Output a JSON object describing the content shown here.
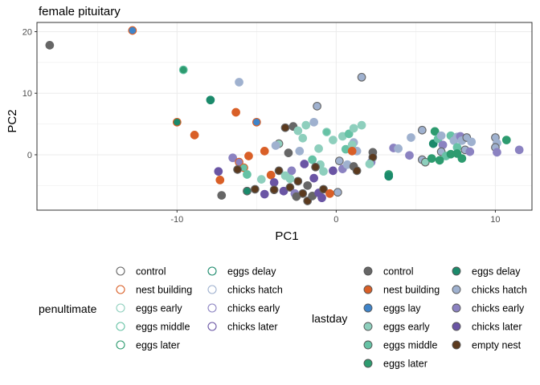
{
  "chart_data": {
    "type": "scatter",
    "title": "female pituitary",
    "xlabel": "PC1",
    "ylabel": "PC2",
    "xlim": [
      -18.8,
      12.3
    ],
    "ylim": [
      -9.0,
      21.5
    ],
    "xticks": [
      -10,
      0,
      10
    ],
    "xtick_labels": [
      "-10",
      "0",
      "10"
    ],
    "yticks": [
      -10,
      0,
      10,
      20
    ],
    "ytick_labels": [
      "",
      "0",
      "10",
      "20"
    ],
    "grid": true,
    "border_color": "#333333",
    "grid_color": "#ebebeb",
    "legends": [
      {
        "title": "penultimate",
        "style": "outline",
        "columns": [
          [
            "control",
            "nest building",
            "eggs early",
            "eggs middle",
            "eggs later"
          ],
          [
            "eggs delay",
            "chicks hatch",
            "chicks early",
            "chicks later"
          ]
        ]
      },
      {
        "title": "lastday",
        "style": "filled",
        "columns": [
          [
            "control",
            "nest building",
            "eggs lay",
            "eggs early",
            "eggs middle",
            "eggs later"
          ],
          [
            "eggs delay",
            "chicks hatch",
            "chicks early",
            "chicks later",
            "empty nest"
          ]
        ]
      }
    ],
    "colors": {
      "control": "#666666",
      "nest building": "#d95f27",
      "eggs lay": "#3f84c9",
      "eggs early": "#8ecfbd",
      "eggs middle": "#66c2a5",
      "eggs later": "#2d9b6f",
      "eggs delay": "#1b8a6b",
      "chicks hatch": "#9fb1cf",
      "chicks early": "#8b82c1",
      "chicks later": "#6a55a4",
      "empty nest": "#5b3a1e"
    },
    "points": [
      {
        "x": -18.0,
        "y": 17.8,
        "fill": "control",
        "stroke": "control"
      },
      {
        "x": -12.8,
        "y": 20.2,
        "fill": "eggs lay",
        "stroke": "nest building"
      },
      {
        "x": -9.6,
        "y": 13.8,
        "fill": "eggs later",
        "stroke": "eggs middle"
      },
      {
        "x": -7.9,
        "y": 8.9,
        "fill": "eggs delay",
        "stroke": "eggs delay"
      },
      {
        "x": -6.1,
        "y": 11.8,
        "fill": "chicks hatch",
        "stroke": "chicks hatch"
      },
      {
        "x": -6.3,
        "y": 6.9,
        "fill": "nest building",
        "stroke": "nest building"
      },
      {
        "x": -10.0,
        "y": 5.3,
        "fill": "eggs delay",
        "stroke": "nest building"
      },
      {
        "x": -5.0,
        "y": 5.3,
        "fill": "eggs lay",
        "stroke": "nest building"
      },
      {
        "x": -8.9,
        "y": 3.2,
        "fill": "nest building",
        "stroke": "nest building"
      },
      {
        "x": 1.6,
        "y": 12.6,
        "fill": "chicks hatch",
        "stroke": "control"
      },
      {
        "x": -1.2,
        "y": 7.9,
        "fill": "chicks hatch",
        "stroke": "control"
      },
      {
        "x": -3.6,
        "y": 1.8,
        "fill": "eggs early",
        "stroke": "control"
      },
      {
        "x": -3.2,
        "y": 4.4,
        "fill": "empty nest",
        "stroke": "control"
      },
      {
        "x": -2.7,
        "y": 4.6,
        "fill": "control",
        "stroke": "control"
      },
      {
        "x": -2.4,
        "y": 3.9,
        "fill": "eggs early",
        "stroke": "eggs early"
      },
      {
        "x": -1.9,
        "y": 4.8,
        "fill": "eggs early",
        "stroke": "eggs early"
      },
      {
        "x": -1.4,
        "y": 5.3,
        "fill": "chicks hatch",
        "stroke": "chicks hatch"
      },
      {
        "x": -0.6,
        "y": 3.7,
        "fill": "eggs middle",
        "stroke": "eggs early"
      },
      {
        "x": -0.2,
        "y": 2.4,
        "fill": "eggs early",
        "stroke": "eggs early"
      },
      {
        "x": 0.4,
        "y": 3.0,
        "fill": "eggs early",
        "stroke": "eggs early"
      },
      {
        "x": 0.8,
        "y": 3.4,
        "fill": "eggs middle",
        "stroke": "eggs middle"
      },
      {
        "x": 1.1,
        "y": 4.3,
        "fill": "eggs early",
        "stroke": "eggs early"
      },
      {
        "x": 1.6,
        "y": 4.8,
        "fill": "eggs early",
        "stroke": "eggs early"
      },
      {
        "x": 1.1,
        "y": 2.0,
        "fill": "chicks hatch",
        "stroke": "chicks hatch"
      },
      {
        "x": -2.1,
        "y": 2.7,
        "fill": "eggs early",
        "stroke": "eggs early"
      },
      {
        "x": -3.8,
        "y": 1.5,
        "fill": "chicks hatch",
        "stroke": "chicks hatch"
      },
      {
        "x": -4.5,
        "y": 0.6,
        "fill": "nest building",
        "stroke": "nest building"
      },
      {
        "x": -3.0,
        "y": 0.3,
        "fill": "control",
        "stroke": "control"
      },
      {
        "x": -2.3,
        "y": 0.6,
        "fill": "chicks hatch",
        "stroke": "chicks hatch"
      },
      {
        "x": -1.1,
        "y": 1.0,
        "fill": "eggs early",
        "stroke": "eggs early"
      },
      {
        "x": -1.5,
        "y": -0.8,
        "fill": "eggs middle",
        "stroke": "eggs middle"
      },
      {
        "x": -1.0,
        "y": -1.6,
        "fill": "eggs early",
        "stroke": "eggs early"
      },
      {
        "x": -0.8,
        "y": -2.7,
        "fill": "eggs early",
        "stroke": "eggs early"
      },
      {
        "x": 0.6,
        "y": 0.9,
        "fill": "eggs middle",
        "stroke": "eggs middle"
      },
      {
        "x": 1.0,
        "y": 1.6,
        "fill": "eggs early",
        "stroke": "eggs early"
      },
      {
        "x": 1.3,
        "y": 0.6,
        "fill": "chicks hatch",
        "stroke": "chicks hatch"
      },
      {
        "x": 0.2,
        "y": -1.0,
        "fill": "chicks hatch",
        "stroke": "control"
      },
      {
        "x": 0.4,
        "y": -2.3,
        "fill": "chicks early",
        "stroke": "chicks early"
      },
      {
        "x": 0.7,
        "y": -1.6,
        "fill": "chicks hatch",
        "stroke": "chicks hatch"
      },
      {
        "x": 1.1,
        "y": -1.9,
        "fill": "control",
        "stroke": "control"
      },
      {
        "x": 1.3,
        "y": -2.6,
        "fill": "empty nest",
        "stroke": "control"
      },
      {
        "x": 2.2,
        "y": -1.2,
        "fill": "chicks early",
        "stroke": "chicks early"
      },
      {
        "x": 2.3,
        "y": 0.4,
        "fill": "control",
        "stroke": "control"
      },
      {
        "x": 2.3,
        "y": -0.4,
        "fill": "empty nest",
        "stroke": "control"
      },
      {
        "x": 1.0,
        "y": 0.6,
        "fill": "nest building",
        "stroke": "nest building"
      },
      {
        "x": -0.2,
        "y": -2.6,
        "fill": "chicks later",
        "stroke": "chicks later"
      },
      {
        "x": -1.3,
        "y": -2.0,
        "fill": "empty nest",
        "stroke": "control"
      },
      {
        "x": -2.8,
        "y": -2.6,
        "fill": "chicks early",
        "stroke": "chicks early"
      },
      {
        "x": 0.1,
        "y": -6.1,
        "fill": "chicks hatch",
        "stroke": "control"
      },
      {
        "x": 2.1,
        "y": -1.5,
        "fill": "eggs early",
        "stroke": "eggs early"
      },
      {
        "x": 3.3,
        "y": -3.2,
        "fill": "eggs later",
        "stroke": "eggs later"
      },
      {
        "x": 3.3,
        "y": -3.5,
        "fill": "eggs delay",
        "stroke": "eggs delay"
      },
      {
        "x": 3.6,
        "y": 1.1,
        "fill": "chicks early",
        "stroke": "chicks early"
      },
      {
        "x": 3.9,
        "y": 1.0,
        "fill": "chicks hatch",
        "stroke": "chicks hatch"
      },
      {
        "x": 4.7,
        "y": 2.8,
        "fill": "chicks hatch",
        "stroke": "chicks hatch"
      },
      {
        "x": 4.6,
        "y": -0.1,
        "fill": "chicks early",
        "stroke": "chicks early"
      },
      {
        "x": 5.4,
        "y": 4.0,
        "fill": "chicks hatch",
        "stroke": "control"
      },
      {
        "x": 5.4,
        "y": -0.8,
        "fill": "chicks hatch",
        "stroke": "control"
      },
      {
        "x": 5.6,
        "y": -1.2,
        "fill": "eggs early",
        "stroke": "control"
      },
      {
        "x": 6.0,
        "y": -0.6,
        "fill": "eggs later",
        "stroke": "eggs later"
      },
      {
        "x": 6.1,
        "y": 1.8,
        "fill": "eggs delay",
        "stroke": "eggs delay"
      },
      {
        "x": 6.2,
        "y": 3.8,
        "fill": "eggs later",
        "stroke": "eggs later"
      },
      {
        "x": 6.4,
        "y": 2.6,
        "fill": "eggs middle",
        "stroke": "eggs middle"
      },
      {
        "x": 6.6,
        "y": 3.1,
        "fill": "chicks hatch",
        "stroke": "chicks hatch"
      },
      {
        "x": 6.7,
        "y": 1.6,
        "fill": "chicks early",
        "stroke": "chicks early"
      },
      {
        "x": 6.6,
        "y": 0.5,
        "fill": "chicks hatch",
        "stroke": "control"
      },
      {
        "x": 6.9,
        "y": -0.2,
        "fill": "eggs middle",
        "stroke": "eggs middle"
      },
      {
        "x": 6.5,
        "y": -0.9,
        "fill": "eggs later",
        "stroke": "eggs later"
      },
      {
        "x": 7.2,
        "y": 3.1,
        "fill": "eggs middle",
        "stroke": "eggs middle"
      },
      {
        "x": 7.4,
        "y": 2.3,
        "fill": "chicks hatch",
        "stroke": "chicks hatch"
      },
      {
        "x": 7.6,
        "y": 2.9,
        "fill": "chicks hatch",
        "stroke": "chicks hatch"
      },
      {
        "x": 7.8,
        "y": 3.0,
        "fill": "chicks early",
        "stroke": "chicks early"
      },
      {
        "x": 7.9,
        "y": 2.3,
        "fill": "chicks hatch",
        "stroke": "chicks hatch"
      },
      {
        "x": 8.2,
        "y": 2.8,
        "fill": "chicks hatch",
        "stroke": "control"
      },
      {
        "x": 8.5,
        "y": 2.1,
        "fill": "chicks hatch",
        "stroke": "chicks hatch"
      },
      {
        "x": 7.6,
        "y": 1.2,
        "fill": "eggs middle",
        "stroke": "eggs middle"
      },
      {
        "x": 7.2,
        "y": 0.1,
        "fill": "eggs later",
        "stroke": "eggs later"
      },
      {
        "x": 7.6,
        "y": 0.2,
        "fill": "eggs later",
        "stroke": "eggs later"
      },
      {
        "x": 7.9,
        "y": -0.6,
        "fill": "eggs later",
        "stroke": "eggs later"
      },
      {
        "x": 8.1,
        "y": 0.8,
        "fill": "chicks hatch",
        "stroke": "control"
      },
      {
        "x": 8.4,
        "y": 0.5,
        "fill": "chicks early",
        "stroke": "chicks early"
      },
      {
        "x": 10.0,
        "y": 2.8,
        "fill": "chicks hatch",
        "stroke": "control"
      },
      {
        "x": 10.1,
        "y": 1.9,
        "fill": "chicks hatch",
        "stroke": "chicks hatch"
      },
      {
        "x": 10.0,
        "y": 1.2,
        "fill": "chicks hatch",
        "stroke": "control"
      },
      {
        "x": 10.1,
        "y": 0.4,
        "fill": "chicks early",
        "stroke": "chicks early"
      },
      {
        "x": 10.7,
        "y": 2.4,
        "fill": "eggs later",
        "stroke": "eggs later"
      },
      {
        "x": 11.5,
        "y": 0.8,
        "fill": "chicks early",
        "stroke": "chicks early"
      },
      {
        "x": -6.5,
        "y": -0.5,
        "fill": "chicks early",
        "stroke": "chicks early"
      },
      {
        "x": -6.1,
        "y": -1.2,
        "fill": "chicks early",
        "stroke": "nest building"
      },
      {
        "x": -5.5,
        "y": -0.2,
        "fill": "nest building",
        "stroke": "nest building"
      },
      {
        "x": -5.8,
        "y": -2.1,
        "fill": "eggs middle",
        "stroke": "nest building"
      },
      {
        "x": -5.6,
        "y": -3.2,
        "fill": "eggs middle",
        "stroke": "eggs middle"
      },
      {
        "x": -6.2,
        "y": -2.4,
        "fill": "empty nest",
        "stroke": "control"
      },
      {
        "x": -7.4,
        "y": -2.7,
        "fill": "chicks later",
        "stroke": "chicks later"
      },
      {
        "x": -7.3,
        "y": -4.1,
        "fill": "nest building",
        "stroke": "nest building"
      },
      {
        "x": -7.2,
        "y": -6.6,
        "fill": "control",
        "stroke": "control"
      },
      {
        "x": -5.6,
        "y": -5.9,
        "fill": "eggs delay",
        "stroke": "control"
      },
      {
        "x": -4.7,
        "y": -4.0,
        "fill": "eggs early",
        "stroke": "eggs early"
      },
      {
        "x": -5.1,
        "y": -5.6,
        "fill": "empty nest",
        "stroke": "control"
      },
      {
        "x": -4.5,
        "y": -6.4,
        "fill": "chicks later",
        "stroke": "chicks later"
      },
      {
        "x": -4.1,
        "y": -3.3,
        "fill": "nest building",
        "stroke": "nest building"
      },
      {
        "x": -3.9,
        "y": -4.5,
        "fill": "chicks later",
        "stroke": "chicks later"
      },
      {
        "x": -3.6,
        "y": -2.6,
        "fill": "empty nest",
        "stroke": "control"
      },
      {
        "x": -3.2,
        "y": -3.4,
        "fill": "eggs early",
        "stroke": "eggs early"
      },
      {
        "x": -3.9,
        "y": -5.7,
        "fill": "empty nest",
        "stroke": "control"
      },
      {
        "x": -3.3,
        "y": -5.9,
        "fill": "chicks later",
        "stroke": "chicks later"
      },
      {
        "x": -2.9,
        "y": -5.3,
        "fill": "empty nest",
        "stroke": "control"
      },
      {
        "x": -2.6,
        "y": -6.3,
        "fill": "chicks early",
        "stroke": "chicks early"
      },
      {
        "x": -2.5,
        "y": -6.8,
        "fill": "control",
        "stroke": "control"
      },
      {
        "x": -2.1,
        "y": -6.3,
        "fill": "empty nest",
        "stroke": "control"
      },
      {
        "x": -1.8,
        "y": -7.5,
        "fill": "empty nest",
        "stroke": "control"
      },
      {
        "x": -1.5,
        "y": -6.7,
        "fill": "control",
        "stroke": "control"
      },
      {
        "x": -1.1,
        "y": -6.2,
        "fill": "chicks later",
        "stroke": "chicks later"
      },
      {
        "x": -0.9,
        "y": -7.0,
        "fill": "chicks later",
        "stroke": "chicks later"
      },
      {
        "x": -0.8,
        "y": -5.6,
        "fill": "empty nest",
        "stroke": "control"
      },
      {
        "x": -0.4,
        "y": -6.3,
        "fill": "nest building",
        "stroke": "nest building"
      },
      {
        "x": -1.8,
        "y": -5.0,
        "fill": "control",
        "stroke": "control"
      },
      {
        "x": -2.4,
        "y": -4.3,
        "fill": "empty nest",
        "stroke": "control"
      },
      {
        "x": -2.9,
        "y": -3.9,
        "fill": "eggs early",
        "stroke": "eggs early"
      },
      {
        "x": -1.4,
        "y": -3.8,
        "fill": "chicks later",
        "stroke": "chicks later"
      },
      {
        "x": -2.0,
        "y": -1.5,
        "fill": "chicks later",
        "stroke": "chicks later"
      }
    ]
  }
}
